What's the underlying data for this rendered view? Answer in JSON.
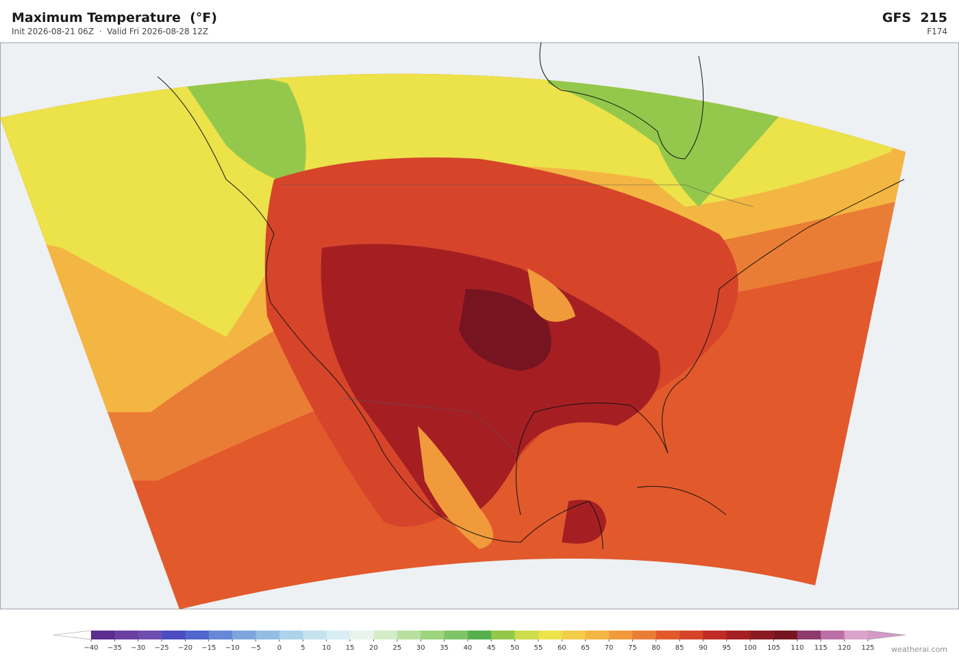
{
  "header": {
    "title": "Maximum Temperature  (°F)",
    "subtitle": "Init 2026-08-21 06Z  ·  Valid Fri 2026-08-28 12Z",
    "model": "GFS  215",
    "forecast_hour": "F174"
  },
  "colorbar": {
    "ticks": [
      {
        "value": -40,
        "label": "−40"
      },
      {
        "value": -35,
        "label": "−35"
      },
      {
        "value": -30,
        "label": "−30"
      },
      {
        "value": -25,
        "label": "−25"
      },
      {
        "value": -20,
        "label": "−20"
      },
      {
        "value": -15,
        "label": "−15"
      },
      {
        "value": -10,
        "label": "−10"
      },
      {
        "value": -5,
        "label": "−5"
      },
      0,
      5,
      10,
      15,
      20,
      25,
      30,
      35,
      40,
      45,
      50,
      55,
      60,
      65,
      70,
      75,
      80,
      85,
      90,
      95,
      100,
      105,
      110,
      115,
      120,
      125
    ],
    "colors": [
      "#5b2d8e",
      "#6b3fa0",
      "#6e4fb0",
      "#4a4cbf",
      "#4f66cc",
      "#6688d6",
      "#7ea6dc",
      "#93bde3",
      "#acd3ea",
      "#c4e3ef",
      "#d8eef2",
      "#e8f4ec",
      "#d4ecc8",
      "#b9e0a0",
      "#9fd47f",
      "#7fc466",
      "#56b04e",
      "#93c84c",
      "#cddc4a",
      "#ece24a",
      "#f3cc4a",
      "#f4b642",
      "#f09a3c",
      "#ea7d35",
      "#e2592c",
      "#d6452a",
      "#bf2c25",
      "#a51f22",
      "#8a1a20",
      "#761520",
      "#8e3a6d",
      "#bb6fa7",
      "#d9a3cb"
    ],
    "under_color": "#ffffff",
    "over_color": "#d29ac6"
  },
  "footer": {
    "credit": "weatherai.com"
  }
}
